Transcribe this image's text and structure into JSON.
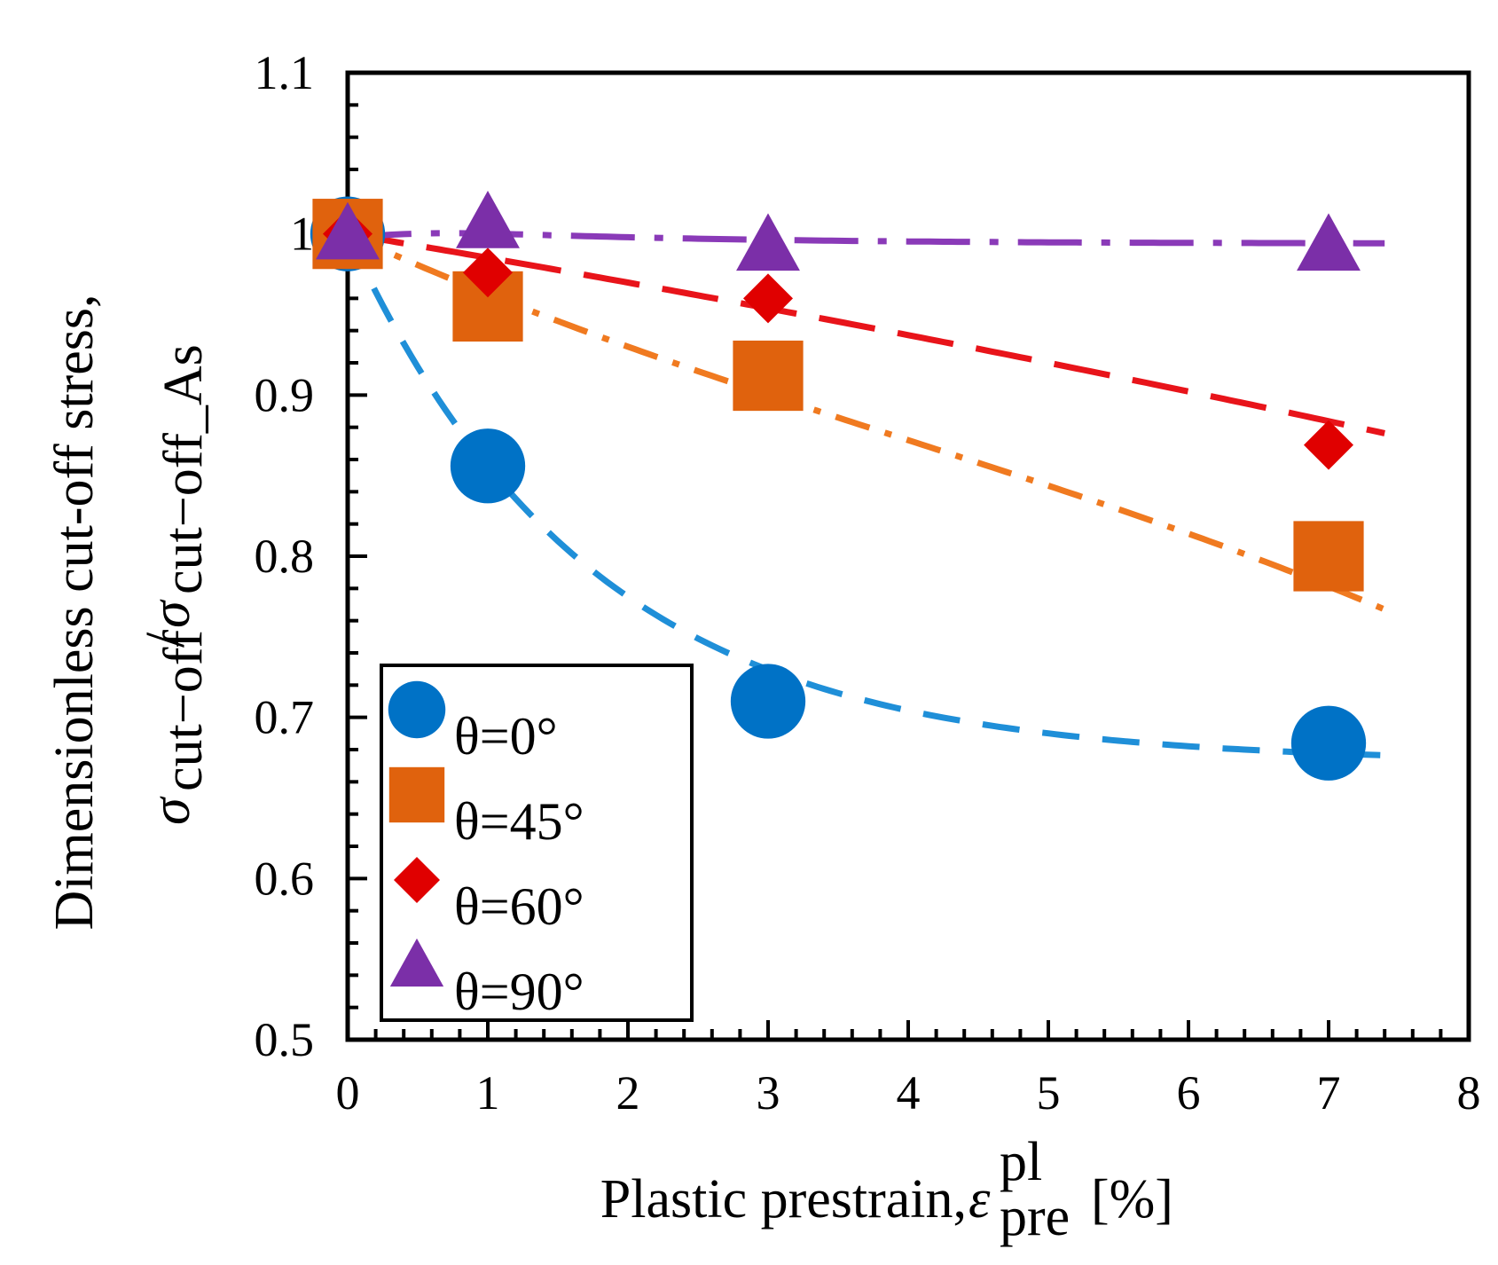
{
  "chart_data": {
    "type": "scatter",
    "title": "",
    "xlabel": {
      "main": "Plastic prestrain, ",
      "symbol": "ε",
      "superscript": "pl",
      "subscript": "pre",
      "unit": " [%]"
    },
    "ylabel": {
      "line1": "Dimensionless cut-off stress,",
      "numerator_symbol": "σ",
      "numerator_sub": "cut−off",
      "slash": "/",
      "denominator_symbol": "σ",
      "denominator_sub": "cut−off_As"
    },
    "xlim": [
      0,
      8
    ],
    "ylim": [
      0.5,
      1.1
    ],
    "xticks": [
      "0",
      "1",
      "2",
      "3",
      "4",
      "5",
      "6",
      "7",
      "8"
    ],
    "yticks": [
      "0.5",
      "0.6",
      "0.7",
      "0.8",
      "0.9",
      "1",
      "1.1"
    ],
    "legend_position": "lower-left",
    "series": [
      {
        "name": "θ=0°",
        "marker": "circle",
        "color": "#0072C6",
        "line_style": "dashed",
        "line_color": "#1F8FD8",
        "x": [
          0,
          1,
          3,
          7
        ],
        "y": [
          1.0,
          0.856,
          0.71,
          0.684
        ],
        "fit": {
          "type": "exp",
          "y_inf": 0.672,
          "amp": 0.328,
          "k": 0.58
        }
      },
      {
        "name": "θ=45°",
        "marker": "square",
        "color": "#E0620D",
        "line_style": "dashdot",
        "line_color": "#F07A20",
        "x": [
          0,
          1,
          3,
          7
        ],
        "y": [
          1.0,
          0.955,
          0.912,
          0.8
        ],
        "fit": {
          "type": "poly",
          "coef": [
            1.0,
            -0.04,
            0.003,
            -0.00025
          ]
        }
      },
      {
        "name": "θ=60°",
        "marker": "diamond",
        "color": "#E00000",
        "line_style": "longdash",
        "line_color": "#E8141A",
        "x": [
          0,
          1,
          3,
          7
        ],
        "y": [
          1.0,
          0.976,
          0.96,
          0.869
        ],
        "fit": {
          "type": "poly",
          "coef": [
            1.0,
            -0.0145,
            -0.0003
          ]
        }
      },
      {
        "name": "θ=90°",
        "marker": "triangle",
        "color": "#7B2FA8",
        "line_style": "dashdotlong",
        "line_color": "#8A3AB8",
        "x": [
          0,
          1,
          3,
          7
        ],
        "y": [
          1.0,
          1.007,
          0.993,
          0.993
        ],
        "fit": {
          "type": "bump",
          "base": 0.994,
          "amp": 0.006,
          "k": 0.55
        }
      }
    ]
  }
}
